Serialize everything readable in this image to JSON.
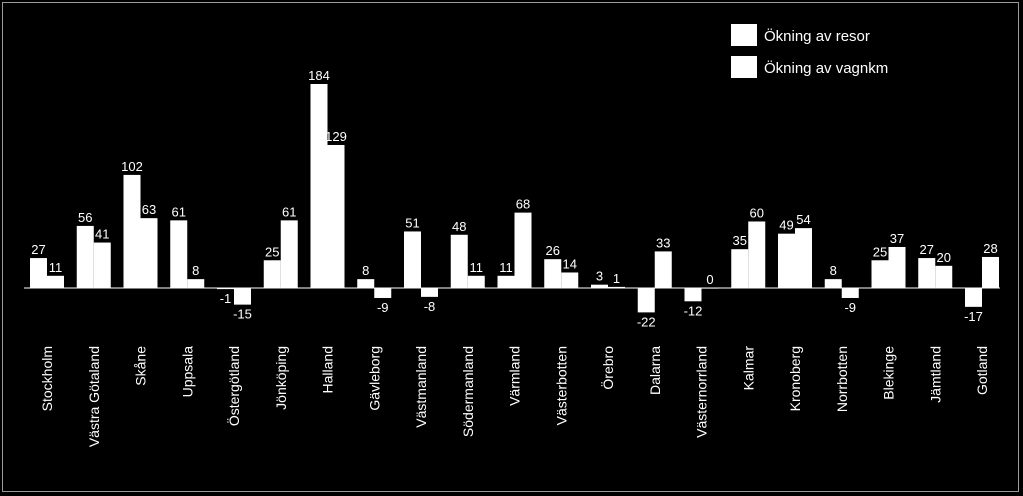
{
  "chart_data": {
    "type": "bar",
    "title": "",
    "xlabel": "",
    "ylabel": "",
    "grid": false,
    "legend_position": "top-right",
    "ylim": [
      -22,
      184
    ],
    "categories": [
      "Stockholm",
      "Västra Götaland",
      "Skåne",
      "Uppsala",
      "Östergötland",
      "Jönköping",
      "Halland",
      "Gävleborg",
      "Västmanland",
      "Södermanland",
      "Värmland",
      "Västerbotten",
      "Örebro",
      "Dalarna",
      "Västernorrland",
      "Kalmar",
      "Kronoberg",
      "Norrbotten",
      "Blekinge",
      "Jämtland",
      "Gotland"
    ],
    "series": [
      {
        "name": "Ökning av resor",
        "values": [
          27,
          56,
          102,
          61,
          -1,
          25,
          184,
          8,
          51,
          48,
          11,
          26,
          3,
          -22,
          -12,
          35,
          49,
          8,
          25,
          27,
          -17
        ]
      },
      {
        "name": "Ökning av vagnkm",
        "values": [
          11,
          41,
          63,
          8,
          -15,
          61,
          129,
          -9,
          -8,
          11,
          68,
          14,
          1,
          33,
          0,
          60,
          54,
          -9,
          37,
          20,
          28
        ]
      }
    ],
    "colors": {
      "background": "#000000",
      "bars": "#ffffff",
      "text": "#ffffff",
      "axis": "#ffffff"
    }
  }
}
